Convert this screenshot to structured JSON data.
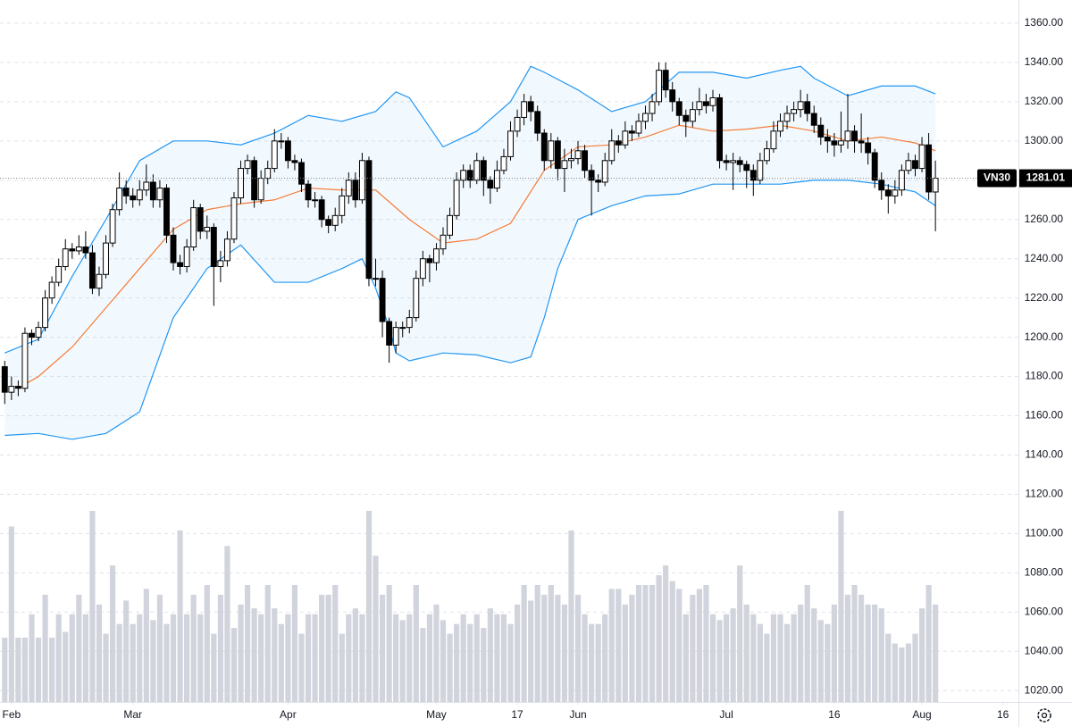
{
  "chart_data": {
    "type": "candlestick",
    "xlim": [
      -0.7,
      150.3
    ],
    "xticks": [
      {
        "value": 1,
        "label": "Feb"
      },
      {
        "value": 19,
        "label": "Mar"
      },
      {
        "value": 42,
        "label": "Apr"
      },
      {
        "value": 64,
        "label": "May"
      },
      {
        "value": 76,
        "label": "17"
      },
      {
        "value": 85,
        "label": "Jun"
      },
      {
        "value": 107,
        "label": "Jul"
      },
      {
        "value": 123,
        "label": "16"
      },
      {
        "value": 136,
        "label": "Aug"
      },
      {
        "value": 148,
        "label": "16"
      }
    ],
    "ylim": [
      1014.2,
      1371.8
    ],
    "yticks": [
      {
        "value": 1020,
        "label": "1020.00"
      },
      {
        "value": 1040,
        "label": "1040.00"
      },
      {
        "value": 1060,
        "label": "1060.00"
      },
      {
        "value": 1080,
        "label": "1080.00"
      },
      {
        "value": 1100,
        "label": "1100.00"
      },
      {
        "value": 1120,
        "label": "1120.00"
      },
      {
        "value": 1140,
        "label": "1140.00"
      },
      {
        "value": 1160,
        "label": "1160.00"
      },
      {
        "value": 1180,
        "label": "1180.00"
      },
      {
        "value": 1200,
        "label": "1200.00"
      },
      {
        "value": 1220,
        "label": "1220.00"
      },
      {
        "value": 1240,
        "label": "1240.00"
      },
      {
        "value": 1260,
        "label": "1260.00"
      },
      {
        "value": 1280,
        "label": "1280.00"
      },
      {
        "value": 1300,
        "label": "1300.00"
      },
      {
        "value": 1320,
        "label": "1320.00"
      },
      {
        "value": 1340,
        "label": "1340.00"
      },
      {
        "value": 1360,
        "label": "1360.00"
      }
    ],
    "grid": true,
    "up_color": "#ffffff",
    "down_color": "#000000",
    "open": [
      1185,
      1172,
      1175,
      1174,
      1202,
      1200,
      1205,
      1220,
      1228,
      1236,
      1245,
      1244,
      1246,
      1243,
      1225,
      1232,
      1248,
      1265,
      1276,
      1272,
      1270,
      1275,
      1279,
      1270,
      1276,
      1252,
      1238,
      1236,
      1246,
      1266,
      1254,
      1256,
      1236,
      1239,
      1250,
      1271,
      1286,
      1290,
      1270,
      1281,
      1286,
      1300,
      1300,
      1290,
      1289,
      1278,
      1270,
      1270,
      1260,
      1257,
      1262,
      1272,
      1280,
      1270,
      1290,
      1230,
      1230,
      1208,
      1196,
      1205,
      1205,
      1210,
      1230,
      1240,
      1238,
      1245,
      1252,
      1262,
      1280,
      1285,
      1280,
      1290,
      1280,
      1276,
      1285,
      1292,
      1305,
      1312,
      1320,
      1315,
      1304,
      1290,
      1300,
      1286,
      1290,
      1291,
      1295,
      1285,
      1280,
      1279,
      1290,
      1300,
      1298,
      1305,
      1304,
      1310,
      1314,
      1320,
      1336,
      1326,
      1320,
      1313,
      1310,
      1316,
      1320,
      1318,
      1322,
      1290,
      1289,
      1290,
      1288,
      1285,
      1280,
      1290,
      1296,
      1305,
      1310,
      1314,
      1316,
      1320,
      1314,
      1308,
      1302,
      1300,
      1298,
      1300,
      1305,
      1300,
      1299,
      1294,
      1280,
      1275,
      1272,
      1275,
      1285,
      1290,
      1286,
      1298,
      1274
    ],
    "high": [
      1188,
      1180,
      1178,
      1205,
      1204,
      1208,
      1224,
      1231,
      1240,
      1250,
      1248,
      1252,
      1254,
      1247,
      1236,
      1252,
      1268,
      1284,
      1280,
      1276,
      1280,
      1288,
      1283,
      1280,
      1278,
      1256,
      1242,
      1250,
      1270,
      1268,
      1262,
      1258,
      1244,
      1254,
      1274,
      1290,
      1293,
      1292,
      1285,
      1290,
      1306,
      1304,
      1302,
      1293,
      1291,
      1280,
      1274,
      1272,
      1262,
      1266,
      1276,
      1284,
      1284,
      1294,
      1292,
      1240,
      1234,
      1210,
      1208,
      1208,
      1214,
      1234,
      1244,
      1242,
      1248,
      1256,
      1266,
      1284,
      1288,
      1288,
      1294,
      1292,
      1282,
      1290,
      1296,
      1310,
      1316,
      1324,
      1323,
      1318,
      1306,
      1304,
      1302,
      1296,
      1296,
      1300,
      1298,
      1288,
      1283,
      1294,
      1306,
      1303,
      1310,
      1308,
      1314,
      1318,
      1324,
      1340,
      1340,
      1330,
      1322,
      1316,
      1320,
      1327,
      1324,
      1326,
      1324,
      1293,
      1294,
      1292,
      1290,
      1288,
      1294,
      1300,
      1310,
      1314,
      1318,
      1320,
      1326,
      1324,
      1318,
      1312,
      1306,
      1304,
      1315,
      1324,
      1308,
      1314,
      1302,
      1296,
      1284,
      1278,
      1280,
      1288,
      1294,
      1293,
      1302,
      1304,
      1290
    ],
    "low": [
      1166,
      1168,
      1170,
      1172,
      1196,
      1198,
      1203,
      1217,
      1226,
      1234,
      1240,
      1242,
      1240,
      1222,
      1221,
      1230,
      1246,
      1262,
      1268,
      1266,
      1267,
      1272,
      1266,
      1266,
      1248,
      1234,
      1232,
      1233,
      1244,
      1250,
      1250,
      1216,
      1228,
      1236,
      1248,
      1268,
      1283,
      1266,
      1268,
      1278,
      1284,
      1296,
      1286,
      1285,
      1274,
      1266,
      1266,
      1256,
      1253,
      1254,
      1258,
      1268,
      1266,
      1268,
      1226,
      1226,
      1200,
      1187,
      1192,
      1200,
      1202,
      1208,
      1226,
      1228,
      1234,
      1242,
      1250,
      1260,
      1276,
      1276,
      1278,
      1272,
      1268,
      1274,
      1283,
      1290,
      1302,
      1308,
      1310,
      1300,
      1285,
      1286,
      1280,
      1274,
      1286,
      1288,
      1281,
      1262,
      1274,
      1277,
      1288,
      1294,
      1296,
      1300,
      1302,
      1306,
      1310,
      1318,
      1322,
      1315,
      1308,
      1302,
      1307,
      1313,
      1314,
      1315,
      1286,
      1285,
      1275,
      1284,
      1276,
      1272,
      1278,
      1288,
      1294,
      1302,
      1306,
      1310,
      1312,
      1310,
      1304,
      1298,
      1294,
      1292,
      1294,
      1296,
      1294,
      1294,
      1288,
      1276,
      1270,
      1263,
      1268,
      1272,
      1283,
      1282,
      1284,
      1270,
      1254
    ],
    "close": [
      1172,
      1175,
      1174,
      1202,
      1200,
      1205,
      1220,
      1228,
      1236,
      1245,
      1244,
      1246,
      1243,
      1225,
      1232,
      1248,
      1265,
      1276,
      1272,
      1270,
      1275,
      1279,
      1270,
      1276,
      1252,
      1238,
      1236,
      1246,
      1266,
      1254,
      1256,
      1236,
      1239,
      1250,
      1271,
      1286,
      1290,
      1270,
      1281,
      1286,
      1300,
      1300,
      1290,
      1289,
      1278,
      1270,
      1270,
      1260,
      1257,
      1262,
      1272,
      1280,
      1270,
      1290,
      1230,
      1230,
      1208,
      1196,
      1205,
      1205,
      1210,
      1230,
      1240,
      1238,
      1245,
      1252,
      1262,
      1280,
      1285,
      1280,
      1290,
      1280,
      1276,
      1285,
      1292,
      1305,
      1312,
      1320,
      1315,
      1304,
      1290,
      1300,
      1286,
      1290,
      1291,
      1295,
      1285,
      1280,
      1279,
      1290,
      1300,
      1298,
      1305,
      1304,
      1310,
      1314,
      1320,
      1336,
      1326,
      1320,
      1313,
      1310,
      1316,
      1320,
      1318,
      1322,
      1290,
      1289,
      1290,
      1288,
      1285,
      1280,
      1290,
      1296,
      1305,
      1310,
      1314,
      1316,
      1320,
      1314,
      1308,
      1302,
      1300,
      1298,
      1300,
      1305,
      1300,
      1299,
      1294,
      1280,
      1275,
      1272,
      1275,
      1285,
      1290,
      1286,
      1298,
      1274,
      1281
    ],
    "volume": [
      33,
      90,
      33,
      33,
      45,
      33,
      55,
      33,
      45,
      36,
      45,
      55,
      45,
      98,
      50,
      35,
      70,
      40,
      52,
      40,
      45,
      58,
      42,
      55,
      40,
      45,
      88,
      45,
      55,
      45,
      60,
      35,
      55,
      80,
      38,
      50,
      60,
      48,
      45,
      60,
      48,
      40,
      45,
      60,
      35,
      45,
      45,
      55,
      55,
      60,
      35,
      45,
      48,
      45,
      98,
      75,
      55,
      60,
      45,
      42,
      45,
      60,
      38,
      45,
      50,
      42,
      35,
      40,
      45,
      40,
      45,
      38,
      48,
      45,
      45,
      40,
      50,
      60,
      52,
      60,
      55,
      60,
      55,
      50,
      88,
      55,
      45,
      40,
      40,
      45,
      58,
      58,
      50,
      55,
      60,
      60,
      60,
      65,
      70,
      62,
      58,
      45,
      55,
      58,
      60,
      45,
      42,
      45,
      48,
      70,
      50,
      45,
      40,
      35,
      45,
      45,
      40,
      45,
      50,
      60,
      48,
      42,
      40,
      50,
      98,
      55,
      60,
      55,
      50,
      50,
      48,
      35,
      30,
      28,
      30,
      35,
      48,
      60,
      50
    ],
    "y2lim": [
      0,
      360
    ],
    "volume_color": "#d1d4dc",
    "band": {
      "color": "#2196f3",
      "fill": "rgba(33,150,243,0.06)",
      "upper": {
        "x": [
          0,
          5,
          10,
          15,
          20,
          25,
          30,
          35,
          40,
          45,
          50,
          55,
          58,
          60,
          65,
          70,
          75,
          78,
          80,
          85,
          90,
          95,
          100,
          105,
          110,
          115,
          118,
          120,
          125,
          130,
          135,
          138
        ],
        "values": [
          1192,
          1199,
          1231,
          1260,
          1290,
          1300,
          1300,
          1298,
          1304,
          1313,
          1310,
          1315,
          1325,
          1322,
          1297,
          1305,
          1320,
          1338,
          1335,
          1326,
          1315,
          1320,
          1335,
          1335,
          1332,
          1336,
          1338,
          1332,
          1323,
          1328,
          1328,
          1324
        ]
      },
      "lower": {
        "x": [
          0,
          5,
          10,
          15,
          20,
          25,
          30,
          35,
          40,
          45,
          50,
          53,
          55,
          57,
          58,
          60,
          65,
          70,
          75,
          78,
          80,
          82,
          85,
          90,
          95,
          100,
          105,
          110,
          115,
          120,
          125,
          130,
          135,
          138
        ],
        "values": [
          1150,
          1151,
          1148,
          1151,
          1162,
          1210,
          1235,
          1247,
          1228,
          1228,
          1235,
          1240,
          1225,
          1205,
          1192,
          1188,
          1192,
          1191,
          1187,
          1190,
          1210,
          1235,
          1260,
          1267,
          1272,
          1273,
          1278,
          1278,
          1278,
          1280,
          1280,
          1278,
          1274,
          1267
        ]
      }
    },
    "ma": {
      "color": "#f57c36",
      "x": [
        2,
        5,
        10,
        15,
        20,
        25,
        30,
        35,
        40,
        45,
        50,
        55,
        60,
        65,
        70,
        75,
        80,
        85,
        90,
        95,
        100,
        105,
        110,
        115,
        120,
        125,
        130,
        135,
        138
      ],
      "values": [
        1174,
        1180,
        1195,
        1215,
        1235,
        1255,
        1265,
        1268,
        1270,
        1276,
        1275,
        1275,
        1260,
        1248,
        1250,
        1258,
        1285,
        1297,
        1298,
        1302,
        1308,
        1305,
        1306,
        1308,
        1305,
        1300,
        1302,
        1299,
        1295
      ]
    },
    "last_price": {
      "label": "VN30",
      "value": 1281.01
    }
  }
}
